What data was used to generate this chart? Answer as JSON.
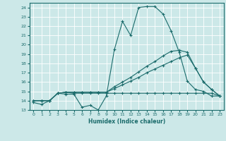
{
  "title": "",
  "xlabel": "Humidex (Indice chaleur)",
  "xlim": [
    -0.5,
    23.5
  ],
  "ylim": [
    13,
    24.5
  ],
  "yticks": [
    13,
    14,
    15,
    16,
    17,
    18,
    19,
    20,
    21,
    22,
    23,
    24
  ],
  "xticks": [
    0,
    1,
    2,
    3,
    4,
    5,
    6,
    7,
    8,
    9,
    10,
    11,
    12,
    13,
    14,
    15,
    16,
    17,
    18,
    19,
    20,
    21,
    22,
    23
  ],
  "bg_color": "#cce8e8",
  "grid_color": "#aacccc",
  "line_color": "#1a6b6b",
  "lines": [
    {
      "x": [
        0,
        1,
        2,
        3,
        4,
        5,
        6,
        7,
        8,
        9,
        10,
        11,
        12,
        13,
        14,
        15,
        16,
        17,
        18,
        19,
        20,
        21,
        22,
        23
      ],
      "y": [
        13.8,
        13.6,
        14.0,
        14.8,
        14.7,
        14.7,
        13.3,
        13.5,
        13.0,
        14.5,
        19.5,
        22.5,
        21.0,
        24.0,
        24.1,
        24.1,
        23.3,
        21.5,
        19.2,
        16.1,
        15.2,
        15.0,
        14.5,
        14.5
      ]
    },
    {
      "x": [
        0,
        1,
        2,
        3,
        4,
        5,
        6,
        7,
        8,
        9,
        10,
        11,
        12,
        13,
        14,
        15,
        16,
        17,
        18,
        19,
        20,
        21,
        22,
        23
      ],
      "y": [
        14.0,
        14.0,
        14.0,
        14.8,
        14.9,
        14.8,
        14.8,
        14.8,
        14.8,
        14.8,
        14.8,
        14.8,
        14.8,
        14.8,
        14.8,
        14.8,
        14.8,
        14.8,
        14.8,
        14.8,
        14.8,
        14.8,
        14.8,
        14.5
      ]
    },
    {
      "x": [
        0,
        1,
        2,
        3,
        4,
        5,
        6,
        7,
        8,
        9,
        10,
        11,
        12,
        13,
        14,
        15,
        16,
        17,
        18,
        19,
        20,
        21,
        22,
        23
      ],
      "y": [
        14.0,
        14.0,
        14.0,
        14.8,
        14.9,
        14.9,
        14.9,
        14.9,
        14.9,
        14.9,
        15.3,
        15.7,
        16.1,
        16.5,
        17.0,
        17.4,
        17.8,
        18.2,
        18.6,
        18.9,
        17.5,
        16.0,
        15.2,
        14.5
      ]
    },
    {
      "x": [
        0,
        1,
        2,
        3,
        4,
        5,
        6,
        7,
        8,
        9,
        10,
        11,
        12,
        13,
        14,
        15,
        16,
        17,
        18,
        19,
        20,
        21,
        22,
        23
      ],
      "y": [
        14.0,
        14.0,
        14.0,
        14.8,
        14.9,
        14.9,
        14.9,
        14.9,
        14.9,
        14.9,
        15.5,
        16.0,
        16.5,
        17.1,
        17.7,
        18.2,
        18.8,
        19.3,
        19.4,
        19.2,
        17.5,
        16.0,
        15.2,
        14.5
      ]
    }
  ]
}
